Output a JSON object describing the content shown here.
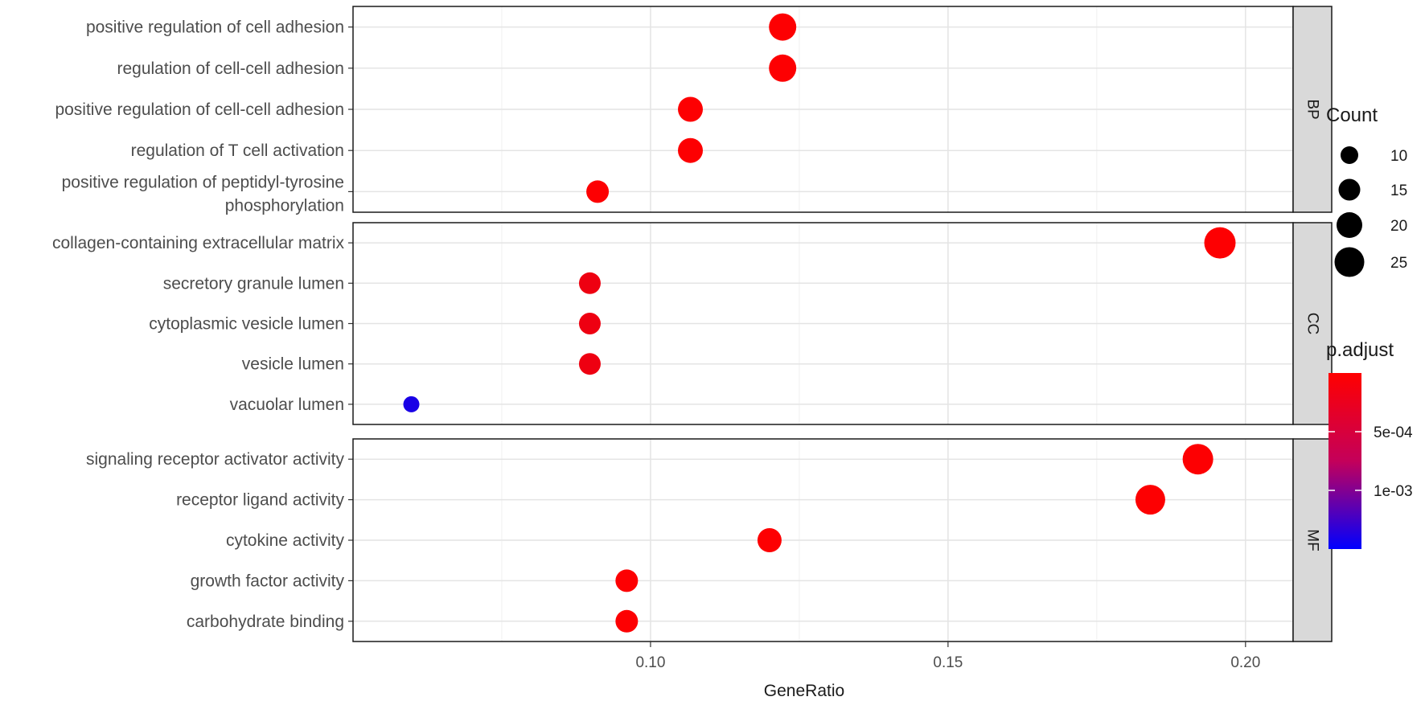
{
  "chart_data": {
    "type": "scatter",
    "xlabel": "GeneRatio",
    "xlim": [
      0.05,
      0.208
    ],
    "xticks": [
      0.1,
      0.15,
      0.2
    ],
    "xtick_labels": [
      "0.10",
      "0.15",
      "0.20"
    ],
    "facets": [
      {
        "strip": "BP",
        "points": [
          {
            "term": "positive regulation of cell adhesion",
            "x": 0.1222,
            "count": 22,
            "p_adjust": 1e-05
          },
          {
            "term": "regulation of cell-cell adhesion",
            "x": 0.1222,
            "count": 22,
            "p_adjust": 1e-05
          },
          {
            "term": "positive regulation of cell-cell adhesion",
            "x": 0.1067,
            "count": 19,
            "p_adjust": 1e-05
          },
          {
            "term": "regulation of T cell activation",
            "x": 0.1067,
            "count": 19,
            "p_adjust": 1e-05
          },
          {
            "term": "positive regulation of peptidyl-tyrosine\nphosphorylation",
            "x": 0.0911,
            "count": 16,
            "p_adjust": 1e-05
          }
        ]
      },
      {
        "strip": "CC",
        "points": [
          {
            "term": "collagen-containing extracellular matrix",
            "x": 0.1957,
            "count": 27,
            "p_adjust": 1e-05
          },
          {
            "term": "secretory granule lumen",
            "x": 0.0898,
            "count": 15,
            "p_adjust": 0.0001
          },
          {
            "term": "cytoplasmic vesicle lumen",
            "x": 0.0898,
            "count": 15,
            "p_adjust": 0.0001
          },
          {
            "term": "vesicle lumen",
            "x": 0.0898,
            "count": 15,
            "p_adjust": 0.0001
          },
          {
            "term": "vacuolar lumen",
            "x": 0.0598,
            "count": 8,
            "p_adjust": 0.00135
          }
        ]
      },
      {
        "strip": "MF",
        "points": [
          {
            "term": "signaling receptor activator activity",
            "x": 0.192,
            "count": 26,
            "p_adjust": 1e-05
          },
          {
            "term": "receptor ligand activity",
            "x": 0.184,
            "count": 25,
            "p_adjust": 1e-05
          },
          {
            "term": "cytokine activity",
            "x": 0.12,
            "count": 18,
            "p_adjust": 1e-05
          },
          {
            "term": "growth factor activity",
            "x": 0.096,
            "count": 16,
            "p_adjust": 1e-05
          },
          {
            "term": "carbohydrate binding",
            "x": 0.096,
            "count": 16,
            "p_adjust": 1e-05
          }
        ]
      }
    ],
    "size_legend": {
      "title": "Count",
      "values": [
        10,
        15,
        20,
        25
      ],
      "labels": [
        "10",
        "15",
        "20",
        "25"
      ]
    },
    "color_legend": {
      "title": "p.adjust",
      "range": [
        0.0,
        0.0015
      ],
      "ticks": [
        0.0005,
        0.001
      ],
      "tick_labels": [
        "5e-04",
        "1e-03"
      ],
      "low_color": "#ff0000",
      "high_color": "#0000ff"
    },
    "grid": true
  }
}
